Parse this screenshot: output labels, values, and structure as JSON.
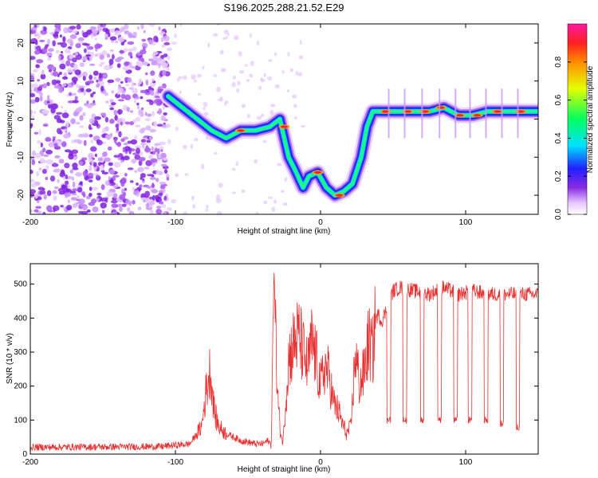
{
  "title": "S196.2025.288.21.52.E29",
  "chart_data": [
    {
      "type": "heatmap",
      "xlabel": "Height of straight line (km)",
      "ylabel": "Frequency (Hz)",
      "xlim": [
        -200,
        150
      ],
      "ylim": [
        -25,
        25
      ],
      "xticks": [
        -200,
        -100,
        0,
        100
      ],
      "yticks": [
        20,
        10,
        0,
        -10,
        -20
      ],
      "colorbar": {
        "label": "Normalized spectral amplitude",
        "range": [
          0,
          1
        ],
        "ticks": [
          "0.0",
          "0.2",
          "0.4",
          "0.6",
          "0.8"
        ]
      },
      "ridge": {
        "description": "dominant frequency track (approx.)",
        "x": [
          -105,
          -95,
          -85,
          -75,
          -65,
          -55,
          -45,
          -35,
          -28,
          -22,
          -18,
          -12,
          -8,
          -2,
          4,
          10,
          16,
          22,
          28,
          32,
          36,
          45,
          60,
          75,
          85,
          95,
          105,
          115,
          130,
          150
        ],
        "y": [
          6,
          3,
          0,
          -3,
          -5,
          -3,
          -3,
          -2,
          0,
          -10,
          -13,
          -18,
          -15,
          -14,
          -18,
          -20,
          -19,
          -17,
          -10,
          -2,
          2,
          2,
          2,
          2,
          3,
          1,
          1,
          2,
          2,
          2
        ]
      }
    },
    {
      "type": "line",
      "xlabel": "Height of straight line (km)",
      "ylabel": "SNR (10 * v/v)",
      "xlim": [
        -200,
        150
      ],
      "ylim": [
        0,
        560
      ],
      "xticks": [
        -200,
        -100,
        0,
        100
      ],
      "yticks": [
        0,
        100,
        200,
        300,
        400,
        500
      ],
      "color": "#e83030",
      "series": [
        {
          "name": "SNR",
          "x": [
            -200,
            -110,
            -90,
            -82,
            -79,
            -76,
            -73,
            -70,
            -65,
            -60,
            -55,
            -50,
            -45,
            -40,
            -36,
            -34,
            -32,
            -30,
            -28,
            -26,
            -22,
            -18,
            -15,
            -12,
            -9,
            -6,
            -3,
            0,
            3,
            6,
            9,
            12,
            15,
            18,
            21,
            24,
            27,
            30,
            33,
            36,
            38,
            40,
            42,
            45,
            50,
            55,
            65,
            75,
            85,
            95,
            105,
            115,
            125,
            135,
            150
          ],
          "y": [
            20,
            22,
            30,
            80,
            180,
            250,
            120,
            80,
            60,
            50,
            40,
            35,
            30,
            30,
            40,
            25,
            550,
            200,
            80,
            30,
            280,
            330,
            350,
            300,
            250,
            330,
            280,
            200,
            260,
            230,
            150,
            130,
            90,
            60,
            80,
            300,
            200,
            240,
            330,
            300,
            400,
            410,
            390,
            420,
            480,
            490,
            480,
            470,
            490,
            470,
            480,
            470,
            470,
            470,
            470
          ]
        }
      ],
      "dropouts": {
        "description": "periodic drops in SNR",
        "x": [
          47,
          58,
          70,
          82,
          93,
          103,
          114,
          125,
          136
        ],
        "y": [
          100,
          100,
          100,
          100,
          100,
          100,
          100,
          90,
          80
        ]
      }
    }
  ]
}
